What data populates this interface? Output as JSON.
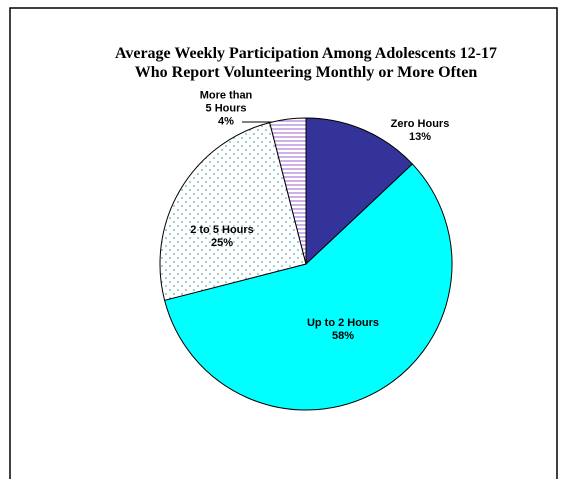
{
  "chart_data": {
    "type": "pie",
    "title": "Average Weekly Participation Among Adolescents 12-17",
    "subtitle": "Who Report Volunteering Monthly or More Often",
    "categories": [
      "Zero Hours",
      "Up to 2 Hours",
      "2 to 5 Hours",
      "More than 5 Hours"
    ],
    "values": [
      13,
      58,
      25,
      4
    ],
    "value_labels": [
      "13%",
      "58%",
      "25%",
      "4%"
    ],
    "colors": [
      "#333399",
      "#00ffff",
      "#ffffff",
      "#ffffff"
    ],
    "patterns": [
      null,
      null,
      "dots",
      "lines"
    ],
    "pattern_colors": [
      null,
      null,
      "#339999",
      "#9966cc"
    ]
  }
}
